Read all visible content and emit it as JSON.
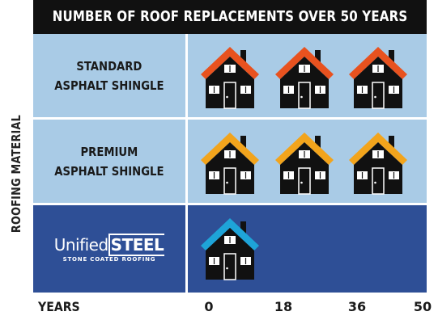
{
  "chart_data": {
    "type": "table",
    "title": "NUMBER OF ROOF REPLACEMENTS OVER 50 YEARS",
    "ylabel": "ROOFING MATERIAL",
    "xlabel": "YEARS",
    "x_ticks": [
      "0",
      "18",
      "36",
      "50"
    ],
    "rows": [
      {
        "label": "STANDARD\nASPHALT SHINGLE",
        "replacements": 3,
        "roof_color": "#e8521f",
        "background": "#a9cbe6"
      },
      {
        "label": "PREMIUM\nASPHALT SHINGLE",
        "replacements": 3,
        "roof_color": "#f2a41c",
        "background": "#a9cbe6"
      },
      {
        "label": "",
        "replacements": 1,
        "roof_color": "#1ea4d8",
        "background": "#2e4f96",
        "logo": {
          "brand_a": "Unified",
          "brand_b": "STEEL",
          "tagline": "STONE COATED ROOFING"
        }
      }
    ]
  }
}
